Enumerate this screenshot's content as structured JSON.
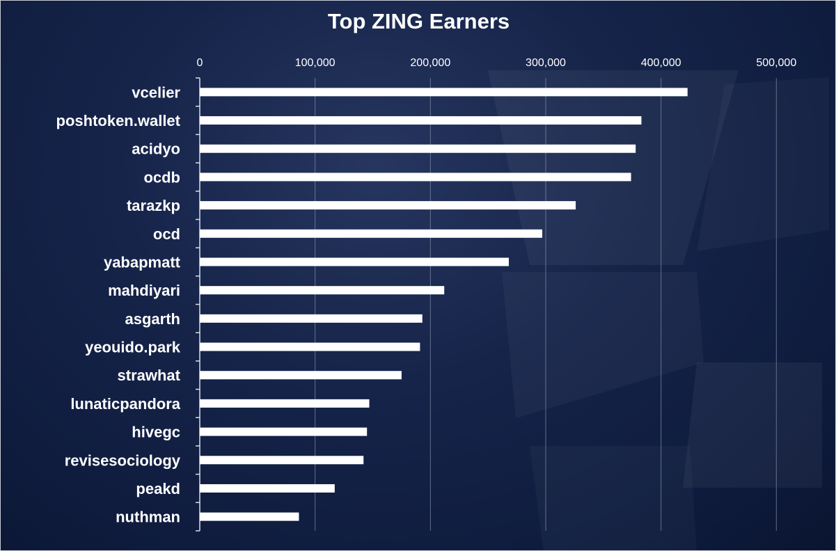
{
  "chart_data": {
    "type": "bar",
    "orientation": "horizontal",
    "title": "Top ZING Earners",
    "xlabel": "",
    "ylabel": "",
    "xlim": [
      0,
      530000
    ],
    "x_ticks": [
      0,
      100000,
      200000,
      300000,
      400000,
      500000
    ],
    "x_tick_labels": [
      "0",
      "100,000",
      "200,000",
      "300,000",
      "400,000",
      "500,000"
    ],
    "x_axis_position": "top",
    "grid": "vertical",
    "legend": "none",
    "categories": [
      "vcelier",
      "poshtoken.wallet",
      "acidyo",
      "ocdb",
      "tarazkp",
      "ocd",
      "yabapmatt",
      "mahdiyari",
      "asgarth",
      "yeouido.park",
      "strawhat",
      "lunaticpandora",
      "hivegc",
      "revisesociology",
      "peakd",
      "nuthman"
    ],
    "values": [
      423000,
      383000,
      378000,
      374000,
      326000,
      297000,
      268000,
      212000,
      193000,
      191000,
      175000,
      147000,
      145000,
      142000,
      117000,
      86000
    ],
    "colors": {
      "bar": "#ffffff",
      "text": "#ffffff",
      "grid": "#7f8aa3",
      "background": "#16244a"
    }
  }
}
